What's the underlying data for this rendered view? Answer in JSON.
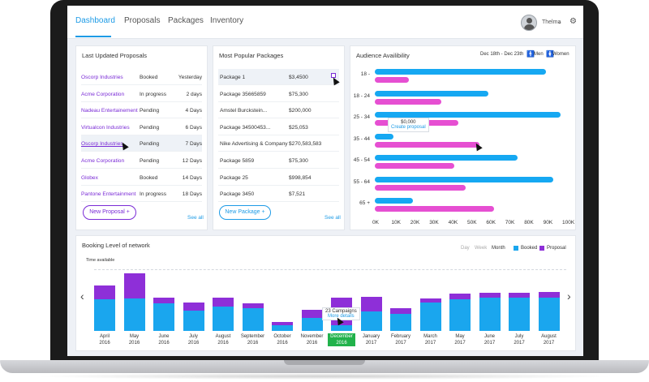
{
  "nav": {
    "tabs": [
      "Dashboard",
      "Proposals",
      "Packages",
      "Inventory"
    ],
    "active_tab": "Dashboard",
    "user_name": "Thelma",
    "caret": "⌄",
    "gear": "⚙"
  },
  "proposals": {
    "title": "Last Updated Proposals",
    "rows": [
      {
        "name": "Oscorp Industries",
        "status": "Booked",
        "time": "Yesterday"
      },
      {
        "name": "Acme Corporation",
        "status": "In progress",
        "time": "2 days"
      },
      {
        "name": "Nadeau Entertainement",
        "status": "Pending",
        "time": "4 Days"
      },
      {
        "name": "Virtualcon Industries",
        "status": "Pending",
        "time": "6 Days"
      },
      {
        "name": "Oscorp Industries",
        "status": "Pending",
        "time": "7 Days"
      },
      {
        "name": "Acme Corporation",
        "status": "Pending",
        "time": "12 Days"
      },
      {
        "name": "Globex",
        "status": "Booked",
        "time": "14 Days"
      },
      {
        "name": "Pantone Entertainment",
        "status": "In progress",
        "time": "18 Days"
      }
    ],
    "new_button": "New Proposal",
    "see_all": "See all"
  },
  "packages": {
    "title": "Most Popular Packages",
    "rows": [
      {
        "name": "Package 1",
        "price": "$3,4500"
      },
      {
        "name": "Package 35665859",
        "price": "$75,300"
      },
      {
        "name": "Amstel Burckstein...",
        "price": "$200,000"
      },
      {
        "name": "Package 34500453...",
        "price": "$25,053"
      },
      {
        "name": "Nike Advertising & Company",
        "price": "$270,583,583"
      },
      {
        "name": "Package 5859",
        "price": "$75,300"
      },
      {
        "name": "Package 25",
        "price": "$998,854"
      },
      {
        "name": "Package 3450",
        "price": "$7,521"
      }
    ],
    "new_button": "New Package",
    "see_all": "See all"
  },
  "audience": {
    "title": "Audience Availibility",
    "date_range": "Dec 18th - Dec 23th",
    "legend_men": "Men",
    "legend_women": "Women",
    "tooltip_value": "$0,000",
    "tooltip_link": "Create proposal"
  },
  "booking": {
    "title": "Booking Level of network",
    "time_available": "Time available",
    "periods": [
      "Day",
      "Week",
      "Month"
    ],
    "active_period": "Month",
    "legend_booked": "Booked",
    "legend_proposal": "Proposal",
    "tooltip_count": "23 Campaigns",
    "tooltip_link": "More details",
    "prev": "‹",
    "next": "›"
  },
  "colors": {
    "booked": "#1aa6ee",
    "proposal": "#8e2fd8",
    "men": "#16a8f2",
    "women": "#e64fd2",
    "accent": "#1d9be6",
    "purple": "#7a2bd6",
    "selected_month": "#21b24b"
  },
  "chart_data": [
    {
      "type": "bar",
      "orientation": "horizontal",
      "title": "Audience Availibility",
      "categories": [
        "18 -",
        "18 - 24",
        "25 - 34",
        "35 - 44",
        "45 - 54",
        "55 - 64",
        "65 +"
      ],
      "series": [
        {
          "name": "Men",
          "values": [
            90,
            60,
            98,
            10,
            75,
            94,
            20
          ]
        },
        {
          "name": "Women",
          "values": [
            18,
            35,
            44,
            55,
            42,
            48,
            63
          ]
        }
      ],
      "xticks": [
        "0K",
        "10K",
        "20K",
        "30K",
        "40K",
        "50K",
        "60K",
        "70K",
        "80K",
        "90K",
        "100K"
      ],
      "xlim": [
        0,
        100
      ]
    },
    {
      "type": "bar",
      "stacked": true,
      "title": "Booking Level of network",
      "categories": [
        "April 2016",
        "May 2016",
        "June 2016",
        "July 2016",
        "August 2016",
        "September 2016",
        "October 2016",
        "November 2016",
        "December 2016",
        "January 2017",
        "February 2017",
        "March 2017",
        "May 2017",
        "June 2017",
        "July 2017",
        "August 2017"
      ],
      "series": [
        {
          "name": "Booked",
          "values": [
            52,
            53,
            45,
            34,
            40,
            38,
            10,
            21,
            10,
            32,
            28,
            47,
            52,
            55,
            55,
            55
          ]
        },
        {
          "name": "Proposal",
          "values": [
            23,
            42,
            10,
            13,
            15,
            7,
            5,
            14,
            45,
            24,
            9,
            7,
            10,
            8,
            8,
            9
          ]
        }
      ],
      "ylim": [
        0,
        100
      ]
    }
  ]
}
